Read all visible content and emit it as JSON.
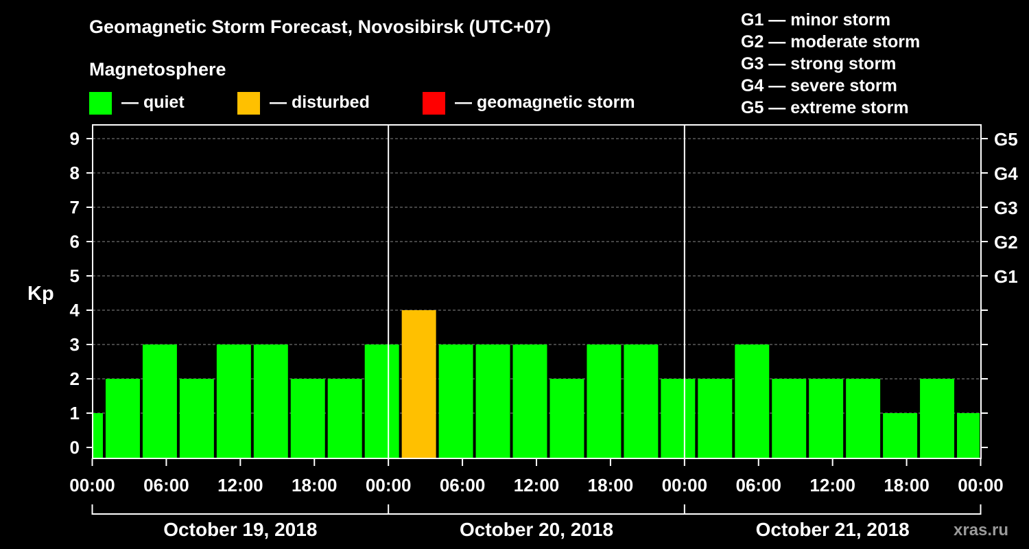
{
  "chart_data": {
    "type": "bar",
    "title": "Geomagnetic Storm Forecast, Novosibirsk (UTC+07)",
    "legend": {
      "heading": "Magnetosphere",
      "items": [
        {
          "label": "— quiet",
          "color": "#00ff00"
        },
        {
          "label": "— disturbed",
          "color": "#ffc000"
        },
        {
          "label": "— geomagnetic storm",
          "color": "#ff0000"
        }
      ],
      "placement": "top-left"
    },
    "storm_scale": [
      "G1 — minor storm",
      "G2 — moderate storm",
      "G3 — strong storm",
      "G4 — severe storm",
      "G5 — extreme storm"
    ],
    "ylabel": "Kp",
    "ylim": [
      0,
      9
    ],
    "y_ticks": [
      "0",
      "1",
      "2",
      "3",
      "4",
      "5",
      "6",
      "7",
      "8",
      "9"
    ],
    "g_levels": [
      {
        "kp": 5,
        "label": "G1"
      },
      {
        "kp": 6,
        "label": "G2"
      },
      {
        "kp": 7,
        "label": "G3"
      },
      {
        "kp": 8,
        "label": "G4"
      },
      {
        "kp": 9,
        "label": "G5"
      }
    ],
    "x_tick_labels": [
      "00:00",
      "06:00",
      "12:00",
      "18:00",
      "00:00",
      "06:00",
      "12:00",
      "18:00",
      "00:00",
      "06:00",
      "12:00",
      "18:00",
      "00:00"
    ],
    "x_range_hours": [
      0,
      72
    ],
    "days": [
      "October 19, 2018",
      "October 20, 2018",
      "October 21, 2018"
    ],
    "bars": [
      {
        "start": 0,
        "end": 1,
        "value": 1
      },
      {
        "start": 1,
        "end": 4,
        "value": 2
      },
      {
        "start": 4,
        "end": 7,
        "value": 3
      },
      {
        "start": 7,
        "end": 10,
        "value": 2
      },
      {
        "start": 10,
        "end": 13,
        "value": 3
      },
      {
        "start": 13,
        "end": 16,
        "value": 3
      },
      {
        "start": 16,
        "end": 19,
        "value": 2
      },
      {
        "start": 19,
        "end": 22,
        "value": 2
      },
      {
        "start": 22,
        "end": 25,
        "value": 3
      },
      {
        "start": 25,
        "end": 28,
        "value": 4
      },
      {
        "start": 28,
        "end": 31,
        "value": 3
      },
      {
        "start": 31,
        "end": 34,
        "value": 3
      },
      {
        "start": 34,
        "end": 37,
        "value": 3
      },
      {
        "start": 37,
        "end": 40,
        "value": 2
      },
      {
        "start": 40,
        "end": 43,
        "value": 3
      },
      {
        "start": 43,
        "end": 46,
        "value": 3
      },
      {
        "start": 46,
        "end": 49,
        "value": 2
      },
      {
        "start": 49,
        "end": 52,
        "value": 2
      },
      {
        "start": 52,
        "end": 55,
        "value": 3
      },
      {
        "start": 55,
        "end": 58,
        "value": 2
      },
      {
        "start": 58,
        "end": 61,
        "value": 2
      },
      {
        "start": 61,
        "end": 64,
        "value": 2
      },
      {
        "start": 64,
        "end": 67,
        "value": 1
      },
      {
        "start": 67,
        "end": 70,
        "value": 2
      },
      {
        "start": 70,
        "end": 72,
        "value": 1
      }
    ],
    "color_rules": {
      "quiet_max": 3,
      "disturbed": 4,
      "storm_min": 5
    },
    "grid": true
  },
  "watermark": "xras.ru"
}
